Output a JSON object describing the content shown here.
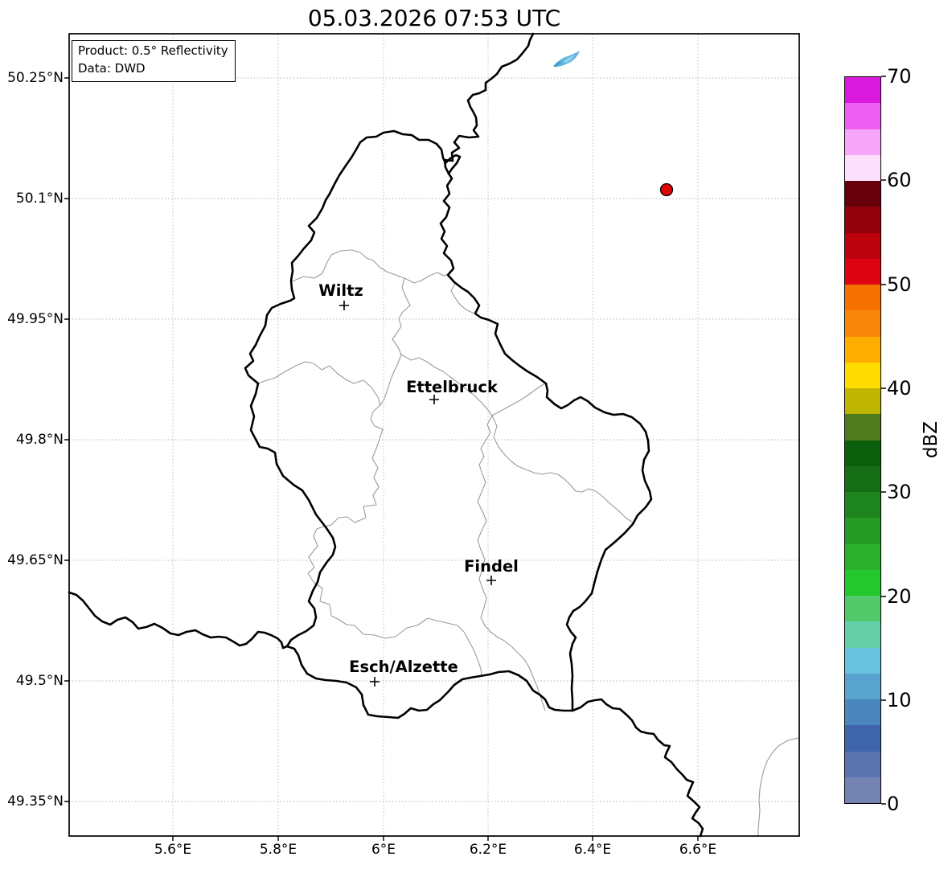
{
  "title": "05.03.2026 07:53 UTC",
  "info_box": {
    "line1": "Product: 0.5° Reflectivity",
    "line2": "Data: DWD"
  },
  "map": {
    "cities": [
      {
        "name": "Wiltz"
      },
      {
        "name": "Ettelbruck"
      },
      {
        "name": "Findel"
      },
      {
        "name": "Esch/Alzette"
      }
    ],
    "echoes": {
      "blue_cell": {
        "color_light": "#8FD2EA",
        "color_mid": "#5FB4DC",
        "color_dark": "#3E97C9"
      },
      "red_dot": {
        "color": "#DE0505"
      }
    },
    "country_border_color": "#000000",
    "district_border_color": "#9a9a9a",
    "grid_color": "#b5b5b5"
  },
  "axes": {
    "lat_ticks": [
      "50.25°N",
      "50.1°N",
      "49.95°N",
      "49.8°N",
      "49.65°N",
      "49.5°N",
      "49.35°N"
    ],
    "lon_ticks": [
      "5.6°E",
      "5.8°E",
      "6°E",
      "6.2°E",
      "6.4°E",
      "6.6°E"
    ]
  },
  "colorbar": {
    "label": "dBZ",
    "ticks_top_to_bottom": [
      "70",
      "60",
      "50",
      "40",
      "30",
      "20",
      "10",
      "0"
    ],
    "value_min": 0,
    "value_max": 70,
    "segments_top_to_bottom": [
      {
        "range": "67.5-70",
        "color": "#D91ADC"
      },
      {
        "range": "65-67.5",
        "color": "#EE5EF1"
      },
      {
        "range": "62.5-65",
        "color": "#F7A6F9"
      },
      {
        "range": "60-62.5",
        "color": "#FBDFFC"
      },
      {
        "range": "57.5-60",
        "color": "#67000A"
      },
      {
        "range": "55-57.5",
        "color": "#92010B"
      },
      {
        "range": "52.5-55",
        "color": "#BA010C"
      },
      {
        "range": "50-52.5",
        "color": "#DE0310"
      },
      {
        "range": "47.5-50",
        "color": "#F57200"
      },
      {
        "range": "45-47.5",
        "color": "#F8860B"
      },
      {
        "range": "42.5-45",
        "color": "#FFAE00"
      },
      {
        "range": "40-42.5",
        "color": "#FFDC00"
      },
      {
        "range": "37.5-40",
        "color": "#BDB500"
      },
      {
        "range": "35-37.5",
        "color": "#4F7A1E"
      },
      {
        "range": "32.5-35",
        "color": "#0B5E0B"
      },
      {
        "range": "30-32.5",
        "color": "#156E15"
      },
      {
        "range": "27.5-30",
        "color": "#1E851E"
      },
      {
        "range": "25-27.5",
        "color": "#259B25"
      },
      {
        "range": "22.5-25",
        "color": "#2BB12B"
      },
      {
        "range": "20-22.5",
        "color": "#23C82F"
      },
      {
        "range": "17.5-20",
        "color": "#52C96B"
      },
      {
        "range": "15-17.5",
        "color": "#65CFA9"
      },
      {
        "range": "12.5-15",
        "color": "#68C2E0"
      },
      {
        "range": "10-12.5",
        "color": "#58A4CE"
      },
      {
        "range": "7.5-10",
        "color": "#4C86BE"
      },
      {
        "range": "5-7.5",
        "color": "#3F65AC"
      },
      {
        "range": "2.5-5",
        "color": "#5B73AE"
      },
      {
        "range": "0-2.5",
        "color": "#7384B2"
      }
    ]
  }
}
